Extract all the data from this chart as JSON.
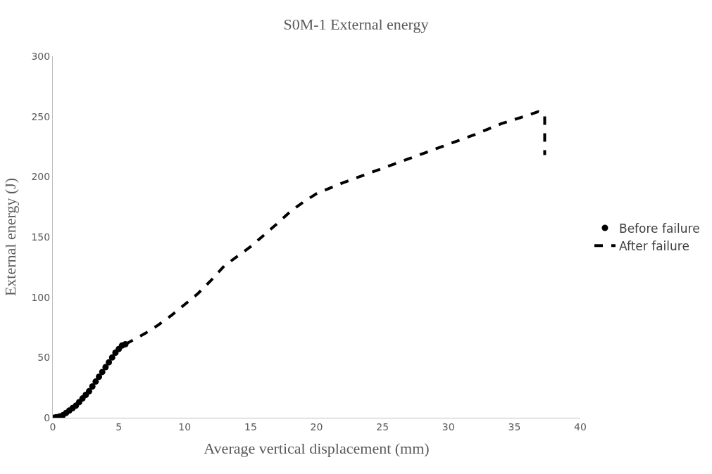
{
  "chart_data": {
    "type": "line",
    "title": "S0M-1 External energy",
    "xlabel": "Average vertical displacement (mm)",
    "ylabel": "External energy (J)",
    "xlim": [
      0,
      40
    ],
    "xticks": [
      0,
      5,
      10,
      15,
      20,
      25,
      30,
      35,
      40
    ],
    "ylim": [
      0,
      300
    ],
    "yticks": [
      0,
      50,
      100,
      150,
      200,
      250,
      300
    ],
    "grid": false,
    "legend": "right",
    "series": [
      {
        "name": "Before failure",
        "type": "scatter",
        "marker": "circle",
        "color": "#000000",
        "x": [
          0,
          0.25,
          0.5,
          0.75,
          1,
          1.25,
          1.5,
          1.75,
          2,
          2.25,
          2.5,
          2.75,
          3,
          3.25,
          3.5,
          3.75,
          4,
          4.25,
          4.5,
          4.75,
          5,
          5.25,
          5.5
        ],
        "values": [
          0,
          0.5,
          1,
          2,
          4,
          6,
          8,
          10,
          13,
          16,
          19,
          22,
          26,
          30,
          34,
          38,
          42,
          46,
          50,
          54,
          57,
          60,
          61
        ]
      },
      {
        "name": "After failure",
        "marker": "none",
        "line_style": "dashed",
        "color": "#000000",
        "x": [
          5.5,
          7,
          8,
          9,
          10,
          11,
          12,
          13,
          15,
          17,
          18,
          19,
          20,
          22,
          25,
          28,
          30,
          32,
          34,
          36,
          36.8,
          37.3,
          37.3
        ],
        "values": [
          61,
          70,
          77,
          85,
          94,
          103,
          114,
          126,
          142,
          161,
          171,
          179,
          186,
          195,
          207,
          219,
          227,
          235,
          244,
          251,
          254,
          252,
          218
        ]
      }
    ]
  }
}
